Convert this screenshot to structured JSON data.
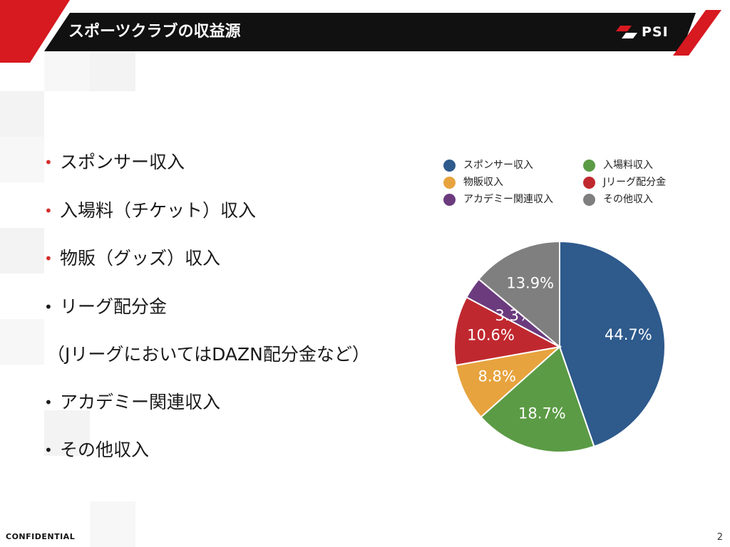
{
  "header": {
    "title": "スポーツクラブの収益源",
    "logo_text": "PSI"
  },
  "bullets": [
    {
      "text": "スポンサー収入",
      "dot_color": "red"
    },
    {
      "text": "入場料（チケット）収入",
      "dot_color": "red"
    },
    {
      "text": "物販（グッズ）収入",
      "dot_color": "red"
    },
    {
      "text": "リーグ配分金",
      "dot_color": "black"
    },
    {
      "text": "（Jリーグにおいては",
      "dot_color": "none",
      "suffix": "DAZN配分金など）"
    },
    {
      "text": "アカデミー関連収入",
      "dot_color": "black"
    },
    {
      "text": "その他収入",
      "dot_color": "black"
    }
  ],
  "chart_data": {
    "type": "pie",
    "title": "",
    "legend_placement": "top",
    "slices": [
      {
        "name": "スポンサー収入",
        "value": 44.7,
        "label": "44.7%",
        "color": "#2e5a8c"
      },
      {
        "name": "入場料収入",
        "value": 18.7,
        "label": "18.7%",
        "color": "#5b9b45"
      },
      {
        "name": "物販収入",
        "value": 8.8,
        "label": "8.8%",
        "color": "#e7a33e"
      },
      {
        "name": "Jリーグ配分金",
        "value": 10.6,
        "label": "10.6%",
        "color": "#c0282f"
      },
      {
        "name": "アカデミー関連収入",
        "value": 3.3,
        "label": "3.3%",
        "color": "#6b3b7e"
      },
      {
        "name": "その他収入",
        "value": 13.9,
        "label": "13.9%",
        "color": "#7f7f7f"
      }
    ],
    "legend_order": [
      "スポンサー収入",
      "入場料収入",
      "物販収入",
      "Jリーグ配分金",
      "アカデミー関連収入",
      "その他収入"
    ]
  },
  "footer": {
    "confidential": "CONFIDENTIAL",
    "page_number": "2"
  },
  "colors": {
    "header_bar": "#111111",
    "accent_red": "#d71920"
  }
}
